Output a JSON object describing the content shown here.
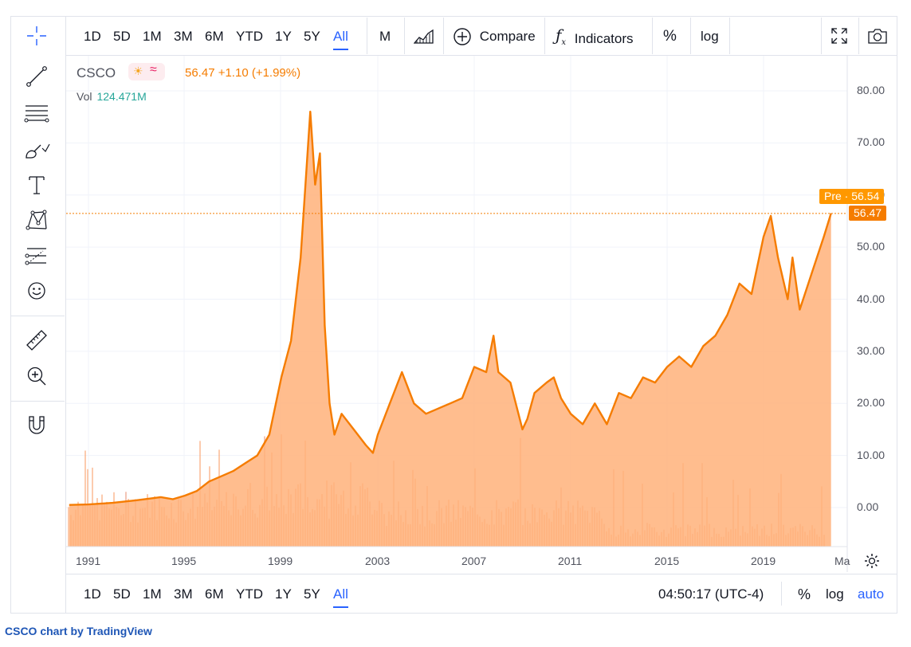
{
  "top_ranges": [
    "1D",
    "5D",
    "1M",
    "3M",
    "6M",
    "YTD",
    "1Y",
    "5Y",
    "All"
  ],
  "active_range": "All",
  "interval": "M",
  "compare_label": "Compare",
  "indicators_label": "Indicators",
  "percent_label": "%",
  "log_label": "log",
  "auto_label": "auto",
  "clock": "04:50:17 (UTC-4)",
  "legend": {
    "symbol": "CSCO",
    "session_icons": "☀≈",
    "price_line": "56.47 +1.10 (+1.99%)",
    "vol_label": "Vol",
    "vol_value": "124.471M"
  },
  "badges": {
    "pre": "Pre · 56.54",
    "last": "56.47"
  },
  "x_cut_label": "Ma",
  "credit": "CSCO chart by TradingView",
  "colors": {
    "line": "#f57c00",
    "area": "#ffb27a",
    "volume": "#f9a06b",
    "accent": "#2962ff"
  },
  "left_tools": [
    "crosshair-icon",
    "trend-line-icon",
    "horizontal-lines-icon",
    "brush-icon",
    "text-icon",
    "pattern-icon",
    "forecast-icon",
    "emoji-icon",
    "ruler-icon",
    "zoom-in-icon",
    "magnet-icon"
  ],
  "chart_data": {
    "type": "area",
    "title": "",
    "xlabel": "",
    "ylabel": "",
    "ylim": [
      -7,
      88
    ],
    "y_ticks": [
      "80.00",
      "70.00",
      "60.00",
      "50.00",
      "40.00",
      "30.00",
      "20.00",
      "10.00",
      "0.00"
    ],
    "x_ticks": [
      "1991",
      "1995",
      "1999",
      "2003",
      "2007",
      "2011",
      "2015",
      "2019"
    ],
    "series": [
      {
        "x": [
          1990.2,
          1991,
          1992,
          1993,
          1994,
          1994.5,
          1995,
          1995.5,
          1996,
          1996.5,
          1997,
          1997.5,
          1998,
          1998.5,
          1999,
          1999.4,
          1999.8,
          2000.2,
          2000.4,
          2000.6,
          2000.8,
          2001,
          2001.2,
          2001.5,
          2002,
          2002.5,
          2002.8,
          2003,
          2003.5,
          2004,
          2004.5,
          2005,
          2005.5,
          2006,
          2006.5,
          2007,
          2007.5,
          2007.8,
          2008,
          2008.5,
          2009,
          2009.2,
          2009.5,
          2010,
          2010.3,
          2010.6,
          2011,
          2011.5,
          2012,
          2012.5,
          2013,
          2013.5,
          2014,
          2014.5,
          2015,
          2015.5,
          2016,
          2016.5,
          2017,
          2017.5,
          2018,
          2018.5,
          2019,
          2019.3,
          2019.6,
          2020,
          2020.2,
          2020.5,
          2021,
          2021.5,
          2021.8
        ],
        "values": [
          0.5,
          0.6,
          0.9,
          1.4,
          2.0,
          1.6,
          2.3,
          3.2,
          5.0,
          6.0,
          7.0,
          8.5,
          10.0,
          14.0,
          25.0,
          32.0,
          48.0,
          76.0,
          62.0,
          68.0,
          35.0,
          20.0,
          14.0,
          18.0,
          15.0,
          12.0,
          10.5,
          14.0,
          20.0,
          26.0,
          20.0,
          18.0,
          19.0,
          20.0,
          21.0,
          27.0,
          26.0,
          33.0,
          26.0,
          24.0,
          15.0,
          17.0,
          22.0,
          24.0,
          25.0,
          21.0,
          18.0,
          16.0,
          20.0,
          16.0,
          22.0,
          21.0,
          25.0,
          24.0,
          27.0,
          29.0,
          27.0,
          31.0,
          33.0,
          37.0,
          43.0,
          41.0,
          52.0,
          56.0,
          48.0,
          40.0,
          48.0,
          38.0,
          45.0,
          52.0,
          56.5
        ]
      }
    ]
  }
}
